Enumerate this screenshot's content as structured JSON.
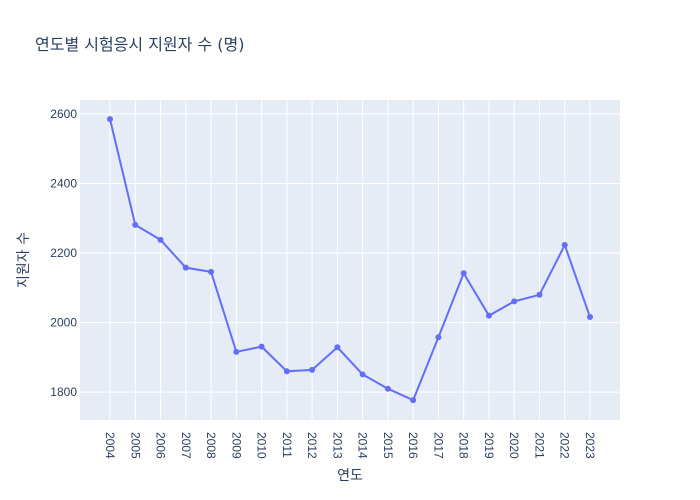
{
  "chart_data": {
    "type": "line",
    "title": "연도별 시험응시 지원자 수 (명)",
    "xlabel": "연도",
    "ylabel": "지원자 수",
    "x": [
      "2004",
      "2005",
      "2006",
      "2007",
      "2008",
      "2009",
      "2010",
      "2011",
      "2012",
      "2013",
      "2014",
      "2015",
      "2016",
      "2017",
      "2018",
      "2019",
      "2020",
      "2021",
      "2022",
      "2023"
    ],
    "series": [
      {
        "values": [
          2585,
          2281,
          2238,
          2158,
          2146,
          1916,
          1931,
          1860,
          1864,
          1929,
          1851,
          1810,
          1777,
          1958,
          2142,
          2020,
          2061,
          2080,
          2223,
          2016
        ]
      }
    ],
    "ylim": [
      1720,
      2640
    ],
    "yticks": [
      1800,
      2000,
      2200,
      2400,
      2600
    ],
    "grid": true,
    "colors": {
      "line": "#636efa",
      "plot_bg": "#e5ecf6",
      "grid": "#ffffff",
      "text": "#2a3f5f"
    }
  }
}
